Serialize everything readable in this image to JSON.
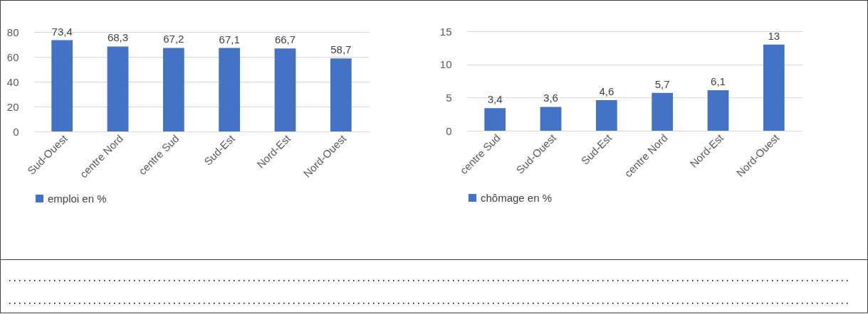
{
  "chart_data": [
    {
      "type": "bar",
      "categories": [
        "Sud-Ouest",
        "centre Nord",
        "centre Sud",
        "Sud-Est",
        "Nord-Est",
        "Nord-Ouest"
      ],
      "series": [
        {
          "name": "emploi en %",
          "color": "#4472c4",
          "values": [
            73.4,
            68.3,
            67.2,
            67.1,
            66.7,
            58.7
          ],
          "value_labels": [
            "73,4",
            "68,3",
            "67,2",
            "67,1",
            "66,7",
            "58,7"
          ]
        }
      ],
      "ylim": [
        0,
        80
      ],
      "yticks": [
        0,
        20,
        40,
        60,
        80
      ],
      "grid": "y",
      "legend": "bottom"
    },
    {
      "type": "bar",
      "categories": [
        "centre Sud",
        "Sud-Ouest",
        "Sud-Est",
        "centre Nord",
        "Nord-Est",
        "Nord-Ouest"
      ],
      "series": [
        {
          "name": "chômage en %",
          "color": "#4472c4",
          "values": [
            3.4,
            3.6,
            4.6,
            5.7,
            6.1,
            13
          ],
          "value_labels": [
            "3,4",
            "3,6",
            "4,6",
            "5,7",
            "6,1",
            "13"
          ]
        }
      ],
      "ylim": [
        0,
        15
      ],
      "yticks": [
        0,
        5,
        10,
        15
      ],
      "grid": "y",
      "legend": "bottom"
    }
  ]
}
